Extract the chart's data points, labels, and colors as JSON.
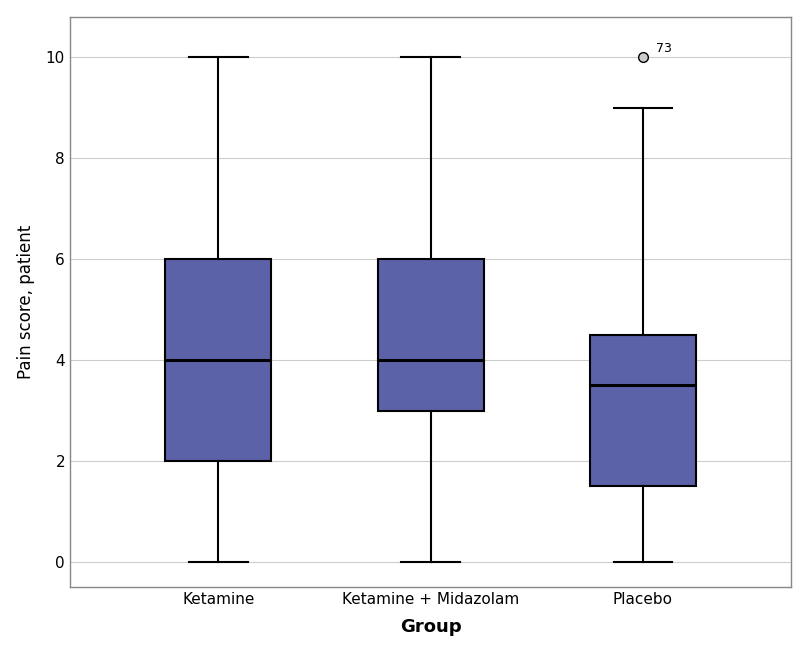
{
  "groups": [
    "Ketamine",
    "Ketamine + Midazolam",
    "Placebo"
  ],
  "boxes": [
    {
      "q1": 2.0,
      "median": 4.0,
      "q3": 6.0,
      "whisker_low": 0.0,
      "whisker_high": 10.0,
      "outliers": []
    },
    {
      "q1": 3.0,
      "median": 4.0,
      "q3": 6.0,
      "whisker_low": 0.0,
      "whisker_high": 10.0,
      "outliers": []
    },
    {
      "q1": 1.5,
      "median": 3.5,
      "q3": 4.5,
      "whisker_low": 0.0,
      "whisker_high": 9.0,
      "outliers": [
        10.0
      ]
    }
  ],
  "outlier_labels": [
    null,
    null,
    {
      "value": 10.0,
      "label": "73"
    }
  ],
  "box_color": "#5B62A8",
  "box_edge_color": "#000000",
  "median_color": "#000000",
  "whisker_color": "#000000",
  "outlier_marker_color": "#cccccc",
  "outlier_marker_edge_color": "#000000",
  "ylabel": "Pain score, patient",
  "xlabel": "Group",
  "ylim": [
    -0.5,
    10.8
  ],
  "yticks": [
    0,
    2,
    4,
    6,
    8,
    10
  ],
  "background_color": "#ffffff",
  "grid_color": "#cccccc",
  "box_width": 0.5,
  "linewidth": 1.5,
  "figsize": [
    8.08,
    6.53
  ],
  "dpi": 100
}
